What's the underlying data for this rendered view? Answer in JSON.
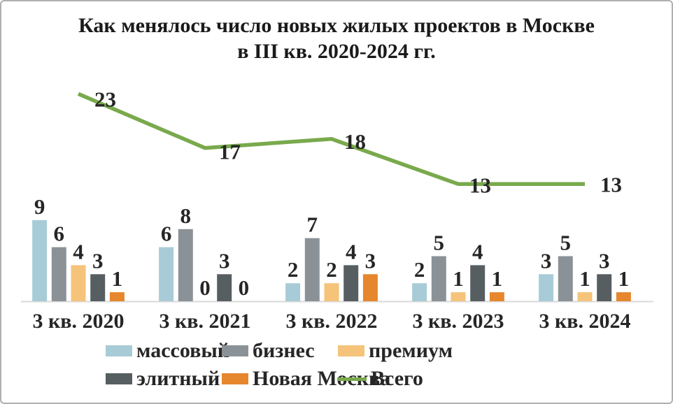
{
  "title": {
    "line1": "Как менялось число новых жилых проектов в Москве",
    "line2": "в III кв. 2020-2024 гг."
  },
  "chart_data": {
    "type": "bar",
    "subtype": "grouped bars with overlay line",
    "title": "Как менялось число новых жилых проектов в Москве в III кв. 2020-2024 гг.",
    "categories": [
      "3 кв. 2020",
      "3 кв. 2021",
      "3 кв. 2022",
      "3 кв. 2023",
      "3 кв. 2024"
    ],
    "bar_series": [
      {
        "name": "массовый",
        "color": "#a8ccd7",
        "values": [
          9,
          6,
          2,
          2,
          3
        ]
      },
      {
        "name": "бизнес",
        "color": "#8b9297",
        "values": [
          6,
          8,
          7,
          5,
          5
        ]
      },
      {
        "name": "премиум",
        "color": "#f5c379",
        "values": [
          4,
          0,
          2,
          1,
          1
        ]
      },
      {
        "name": "элитный",
        "color": "#575e62",
        "values": [
          3,
          3,
          4,
          4,
          3
        ]
      },
      {
        "name": "Новая Москва",
        "color": "#e6862d",
        "values": [
          1,
          0,
          3,
          1,
          1
        ]
      }
    ],
    "line_series": {
      "name": "Всего",
      "color": "#79a94c",
      "values": [
        23,
        17,
        18,
        13,
        13
      ]
    },
    "value_labels_shown": true,
    "gridlines": false,
    "y_axis_shown": false,
    "ylim": [
      0,
      24
    ],
    "axis_line_color": "#d9d9d9",
    "label_color": "#262626",
    "legend_position": "bottom"
  }
}
